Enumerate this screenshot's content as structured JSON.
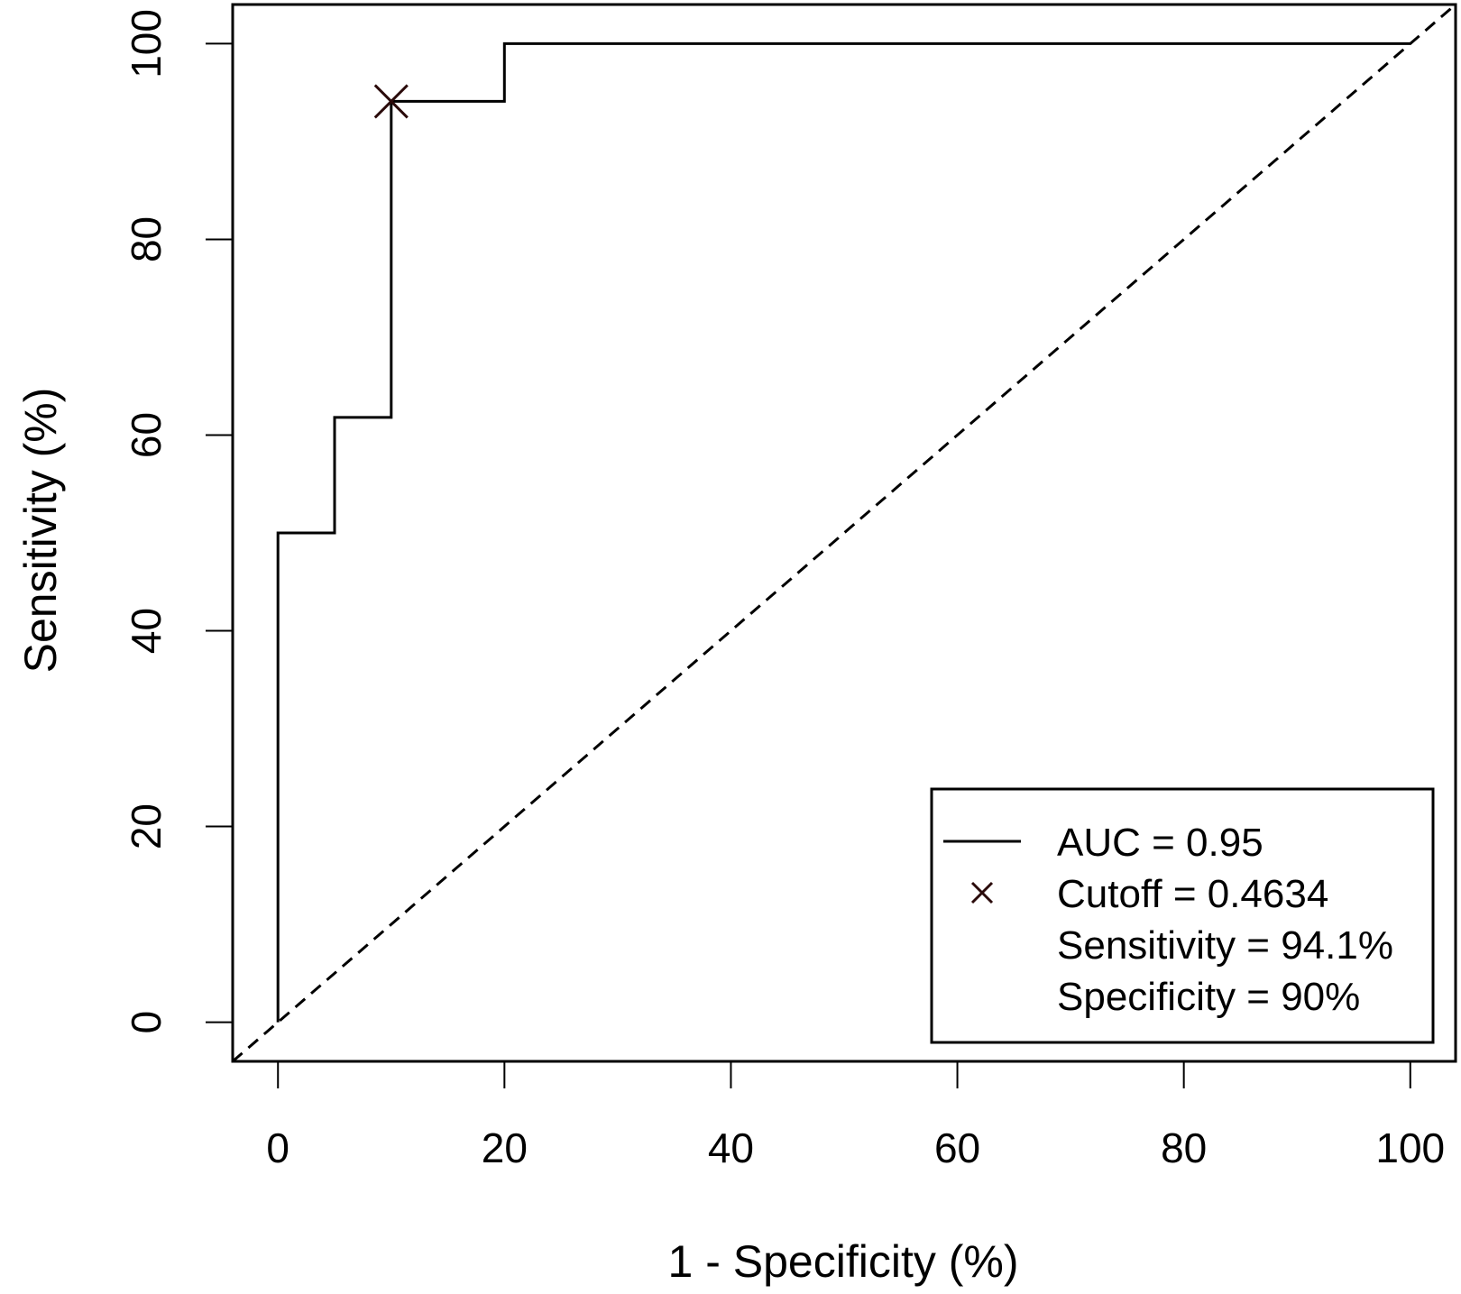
{
  "chart_data": {
    "type": "line",
    "title": "",
    "xlabel": "1 - Specificity (%)",
    "ylabel": "Sensitivity (%)",
    "xlim": [
      -4,
      104
    ],
    "ylim": [
      -4,
      104
    ],
    "x_ticks": [
      0,
      20,
      40,
      60,
      80,
      100
    ],
    "y_ticks": [
      0,
      20,
      40,
      60,
      80,
      100
    ],
    "grid": false,
    "legend_placement": "bottom-right",
    "series": [
      {
        "name": "AUC = 0.95",
        "style": "solid-step",
        "color": "#000000",
        "points": [
          [
            0,
            0
          ],
          [
            0,
            50
          ],
          [
            5,
            50
          ],
          [
            5,
            61.8
          ],
          [
            10,
            61.8
          ],
          [
            10,
            94.1
          ],
          [
            20,
            94.1
          ],
          [
            20,
            100
          ],
          [
            100,
            100
          ]
        ]
      },
      {
        "name": "",
        "style": "dashed",
        "color": "#000000",
        "points": [
          [
            -4,
            -4
          ],
          [
            104,
            104
          ]
        ]
      }
    ],
    "cutoff_point": {
      "x": 10,
      "y": 94.1,
      "marker": "x",
      "color": "#2a0a0a"
    },
    "legend": [
      {
        "symbol": "line",
        "label": "AUC = 0.95"
      },
      {
        "symbol": "x",
        "label": "Cutoff = 0.4634"
      },
      {
        "symbol": "none",
        "label": "Sensitivity = 94.1%"
      },
      {
        "symbol": "none",
        "label": "Specificity = 90%"
      }
    ]
  }
}
